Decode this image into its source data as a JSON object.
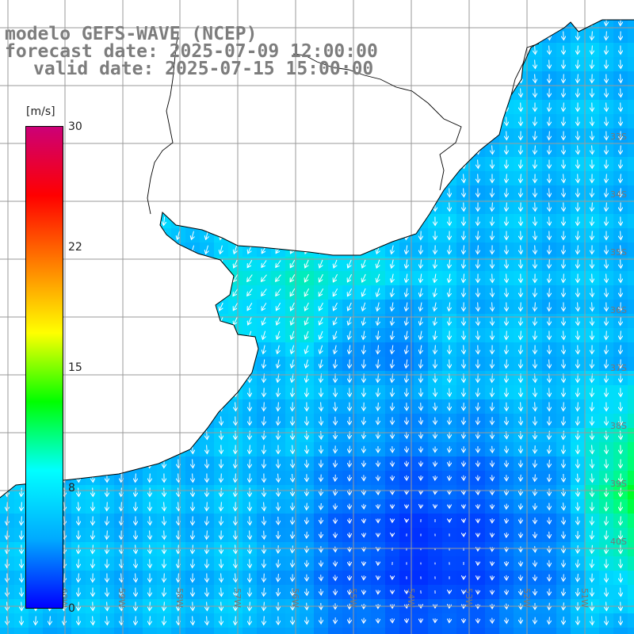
{
  "title": {
    "line1": "modelo GEFS-WAVE (NCEP)",
    "line2": "forecast date: 2025-07-09 12:00:00",
    "line3": "valid date: 2025-07-15 15:00:00"
  },
  "colorbar": {
    "unit": "[m/s]",
    "min": 0,
    "max": 30,
    "ticks": [
      "30",
      "22",
      "15",
      "8",
      "0"
    ],
    "colors": [
      "#0000ff",
      "#00aaff",
      "#00ffff",
      "#00ff00",
      "#ffff00",
      "#ff7f00",
      "#ff0000",
      "#cc0077"
    ]
  },
  "map": {
    "lon_labels": [
      "60W",
      "59W",
      "58W",
      "57W",
      "56W",
      "55W",
      "54W",
      "53W",
      "52W",
      "51W"
    ],
    "lat_labels": [
      "33S",
      "34S",
      "35S",
      "36S",
      "37S",
      "38S",
      "39S",
      "40S"
    ],
    "land_color": "#ffffff",
    "coast_color": "#000000",
    "grid_color": "#9a9a9a"
  }
}
